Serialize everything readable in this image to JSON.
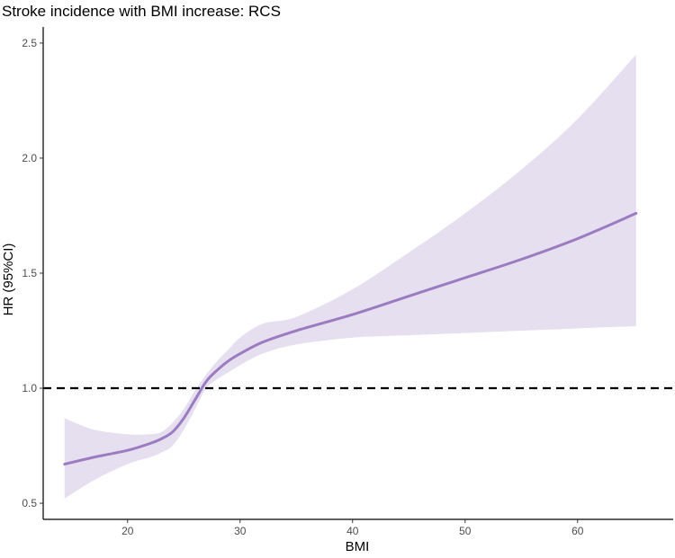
{
  "chart_data": {
    "type": "line",
    "title": "Stroke incidence with BMI increase: RCS",
    "xlabel": "BMI",
    "ylabel": "HR (95%CI)",
    "xlim": [
      12.5,
      68.5
    ],
    "ylim": [
      0.43,
      2.57
    ],
    "x_ticks": [
      20,
      30,
      40,
      50,
      60
    ],
    "y_ticks": [
      0.5,
      1.0,
      1.5,
      2.0,
      2.5
    ],
    "x_tick_labels": [
      "20",
      "30",
      "40",
      "50",
      "60"
    ],
    "y_tick_labels": [
      "0.5",
      "1.0",
      "1.5",
      "2.0",
      "2.5"
    ],
    "reference_line": {
      "y": 1.0,
      "style": "dashed"
    },
    "grid": false,
    "series": [
      {
        "x": [
          14.4,
          17,
          20,
          22,
          23,
          24,
          25,
          26,
          27,
          28,
          29,
          30,
          32,
          35,
          40,
          45,
          50,
          55,
          60,
          65.2
        ],
        "y": [
          0.67,
          0.7,
          0.73,
          0.76,
          0.78,
          0.81,
          0.87,
          0.95,
          1.03,
          1.08,
          1.12,
          1.15,
          1.2,
          1.25,
          1.32,
          1.4,
          1.48,
          1.56,
          1.65,
          1.76
        ],
        "lower": [
          0.52,
          0.6,
          0.67,
          0.7,
          0.72,
          0.75,
          0.82,
          0.91,
          1.0,
          1.04,
          1.07,
          1.1,
          1.15,
          1.19,
          1.22,
          1.23,
          1.24,
          1.25,
          1.26,
          1.27
        ],
        "upper": [
          0.87,
          0.82,
          0.8,
          0.8,
          0.81,
          0.85,
          0.91,
          0.99,
          1.06,
          1.12,
          1.17,
          1.22,
          1.28,
          1.31,
          1.43,
          1.59,
          1.76,
          1.95,
          2.17,
          2.45
        ]
      }
    ],
    "colors": {
      "line": "#9b7cc0",
      "band": "#e6dff0",
      "reference": "#000000",
      "axis": "#000000"
    }
  }
}
